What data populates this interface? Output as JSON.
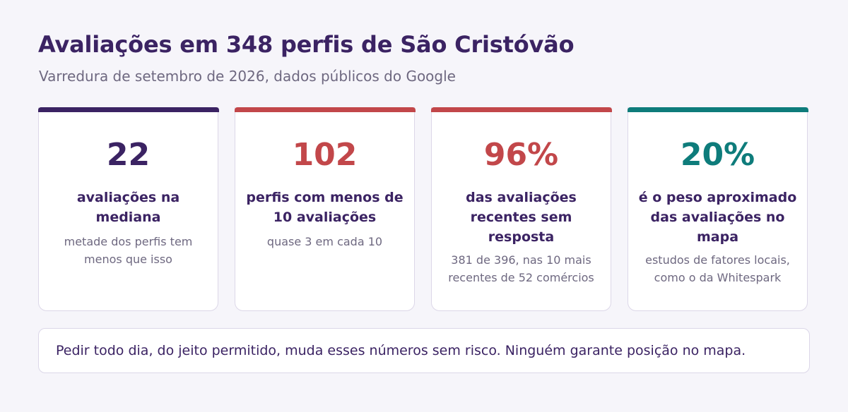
{
  "header": {
    "title": "Avaliações em 348 perfis de São Cristóvão",
    "subtitle": "Varredura de setembro de 2026, dados públicos do Google"
  },
  "cards": [
    {
      "value": "22",
      "label": "avaliações na mediana",
      "note": "metade dos perfis tem menos que isso",
      "color": "#3b2363"
    },
    {
      "value": "102",
      "label": "perfis com menos de 10 avaliações",
      "note": "quase 3 em cada 10",
      "color": "#c2474a"
    },
    {
      "value": "96%",
      "label": "das avaliações recentes sem resposta",
      "note": "381 de 396, nas 10 mais recentes de 52 comércios",
      "color": "#c2474a"
    },
    {
      "value": "20%",
      "label": "é o peso aproximado das avaliações no mapa",
      "note": "estudos de fatores locais, como o da Whitespark",
      "color": "#0e7c7b"
    }
  ],
  "footer": {
    "text": "Pedir todo dia, do jeito permitido, muda esses números sem risco. Ninguém garante posição no mapa."
  }
}
